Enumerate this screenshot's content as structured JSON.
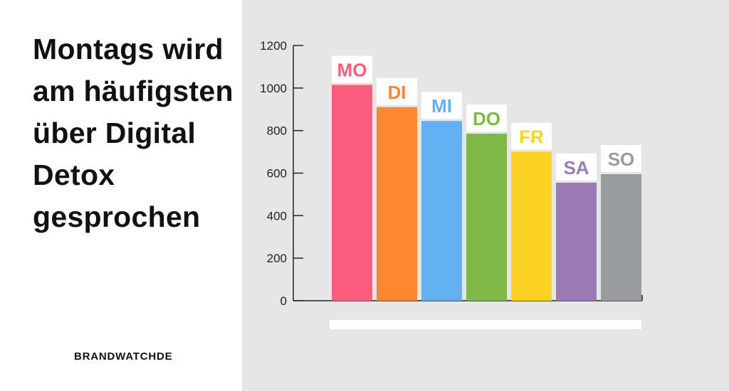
{
  "headline": "Montags wird am häufigsten über Digital Detox gesprochen",
  "brand": "BRANDWATCHDE",
  "chart_data": {
    "type": "bar",
    "title": "",
    "xlabel": "",
    "ylabel": "",
    "ylim": [
      0,
      1200
    ],
    "yticks": [
      "0",
      "200",
      "400",
      "600",
      "800",
      "1000",
      "1200"
    ],
    "categories": [
      "MO",
      "DI",
      "MI",
      "DO",
      "FR",
      "SA",
      "SO"
    ],
    "values": [
      1015,
      910,
      845,
      785,
      700,
      555,
      595
    ],
    "colors": [
      "#fc5c7d",
      "#fd8631",
      "#65b0f2",
      "#7db944",
      "#fdd323",
      "#9a7bb4",
      "#999c9d"
    ],
    "grid": false,
    "legend": "none"
  }
}
